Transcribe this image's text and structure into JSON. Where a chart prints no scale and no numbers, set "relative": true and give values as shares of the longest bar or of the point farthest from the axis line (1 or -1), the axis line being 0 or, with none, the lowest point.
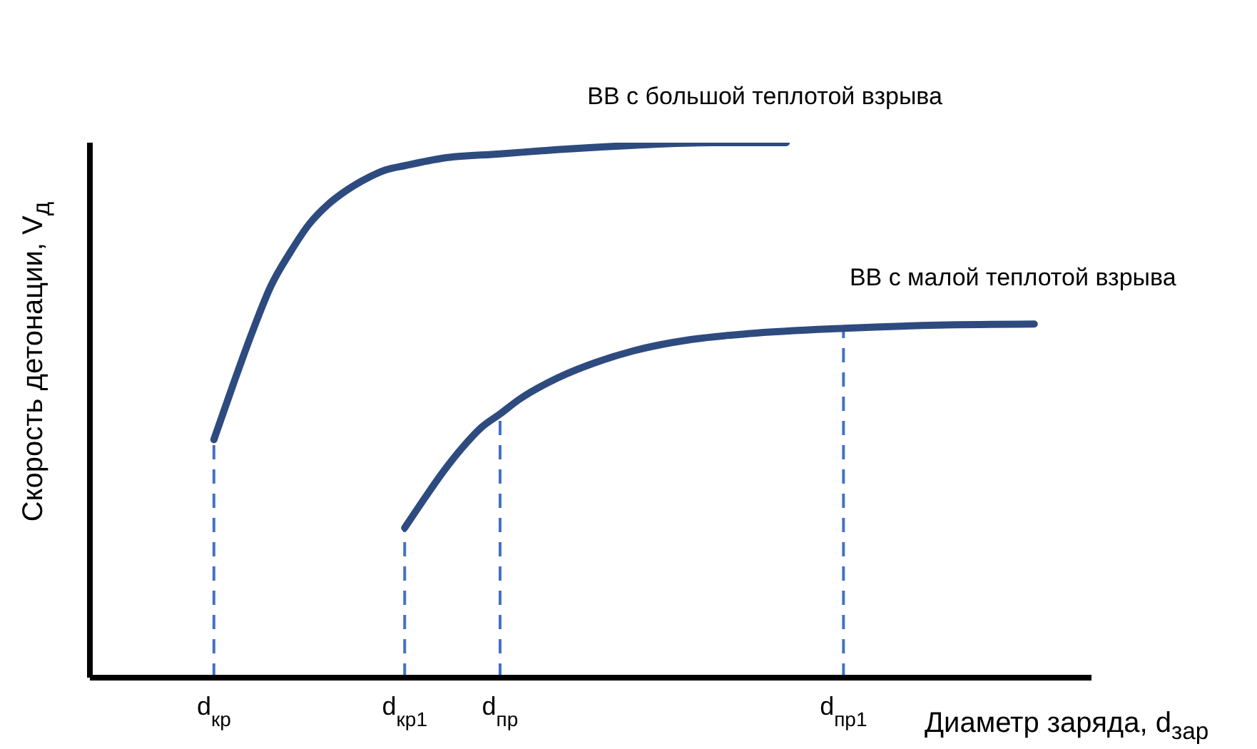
{
  "chart_data": {
    "type": "line",
    "relative": true,
    "xlabel": "Диаметр заряда, d$_{зар}$",
    "ylabel": "Скорость детонации, V$_{д}$",
    "categories": [
      null,
      null,
      null,
      null,
      null,
      null,
      "d$_{кр}$",
      null,
      null,
      null,
      null,
      null,
      null,
      null,
      null,
      null,
      "d$_{кр1}$",
      null,
      null,
      null,
      null,
      "d$_{пр}$",
      null,
      null,
      null,
      null,
      null,
      null,
      null,
      null,
      null,
      null,
      null,
      null,
      null,
      null,
      null,
      null,
      null,
      "d$_{пр1}$",
      null,
      null,
      null,
      null,
      null,
      null,
      null,
      null,
      null,
      null,
      null,
      null,
      null
    ],
    "series": [
      {
        "name": "ВВ с большой теплотой взрыва",
        "color": "#2e4b80",
        "values": [
          null,
          null,
          null,
          null,
          null,
          null,
          0.445,
          0.547,
          0.645,
          0.733,
          0.795,
          0.848,
          0.885,
          0.912,
          0.933,
          0.949,
          0.957,
          null,
          0.971,
          null,
          null,
          0.979,
          null,
          null,
          0.987,
          null,
          null,
          null,
          0.995,
          null,
          null,
          null,
          1,
          null,
          null,
          null,
          1,
          null,
          null,
          null,
          null,
          null,
          null,
          null,
          null,
          null,
          null,
          null,
          null,
          null,
          null,
          null,
          null
        ]
      },
      {
        "name": "ВВ с малой теплотой взрыва",
        "color": "#2e4b80",
        "values": [
          null,
          null,
          null,
          null,
          null,
          null,
          null,
          null,
          null,
          null,
          null,
          null,
          null,
          null,
          null,
          null,
          0.28,
          0.333,
          0.384,
          0.429,
          0.467,
          0.493,
          0.52,
          null,
          0.56,
          null,
          0.589,
          null,
          0.611,
          null,
          null,
          0.632,
          null,
          null,
          0.643,
          null,
          null,
          null,
          null,
          0.653,
          null,
          null,
          null,
          null,
          0.659,
          null,
          null,
          null,
          null,
          0.661,
          null,
          null,
          null
        ]
      }
    ],
    "ref_lines": [
      {
        "axis": "x",
        "value": "d$_{кр}$",
        "color": "#4472c4",
        "line_style": "dashed"
      },
      {
        "axis": "x",
        "value": "d$_{кр1}$",
        "color": "#4472c4",
        "line_style": "dashed"
      },
      {
        "axis": "x",
        "value": "d$_{пр}$",
        "color": "#4472c4",
        "line_style": "dashed"
      },
      {
        "axis": "x",
        "value": "d$_{пр1}$",
        "color": "#4472c4",
        "line_style": "dashed"
      }
    ],
    "grid": false,
    "legend": false,
    "marker": "none",
    "line_style": "solid"
  }
}
